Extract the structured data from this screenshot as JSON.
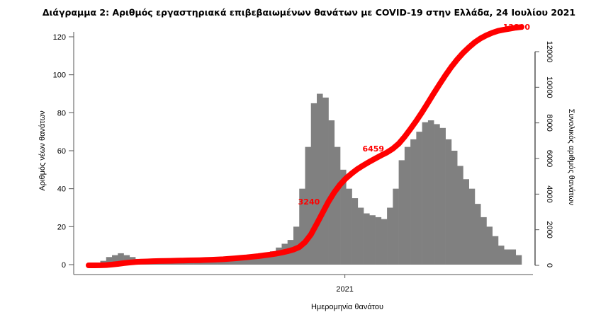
{
  "chart_data": {
    "type": "bar",
    "title": "Διάγραμμα 2: Αριθμός εργαστηριακά επιβεβαιωμένων θανάτων με COVID-19 στην Ελλάδα, 24 Ιουλίου 2021",
    "xlabel": "Ημερομηνία θανάτου",
    "ylabel": "Αριθμός νέων θανάτων",
    "ylabel_right": "Συνολικός αριθμός θανάτων",
    "ylim": [
      0,
      120
    ],
    "ylim_right": [
      0,
      12000
    ],
    "yticks": [
      "0",
      "20",
      "40",
      "60",
      "80",
      "100",
      "120"
    ],
    "yticks_right": [
      "0",
      "2000",
      "4000",
      "6000",
      "8000",
      "10000",
      "12000"
    ],
    "xtick_label": "2021",
    "xtick_week_index": 43.8,
    "bin": "weekly average of daily deaths, March 2020 – 24 July 2021",
    "values": [
      0,
      0.5,
      2,
      4,
      5,
      6,
      5,
      4,
      3,
      2,
      2,
      1,
      1,
      1,
      1,
      1,
      1,
      1,
      1,
      1.5,
      2,
      2,
      2,
      3,
      4,
      4,
      4,
      5,
      5,
      6,
      6,
      7,
      9,
      11,
      13,
      20,
      40,
      62,
      85,
      90,
      88,
      76,
      62,
      50,
      40,
      35,
      30,
      27,
      26,
      25,
      24,
      30,
      40,
      55,
      62,
      66,
      70,
      75,
      76,
      74,
      72,
      66,
      60,
      52,
      45,
      40,
      32,
      25,
      20,
      15,
      10,
      8,
      8,
      5
    ],
    "bar_color": "#808080",
    "cumulative_series": {
      "name": "Συνολικός αριθμός θανάτων",
      "color": "#ff0000"
    },
    "annotations": [
      {
        "text": "3240",
        "value": 3240
      },
      {
        "text": "6459",
        "value": 6459
      },
      {
        "text": "12890",
        "value": 12890
      }
    ]
  }
}
